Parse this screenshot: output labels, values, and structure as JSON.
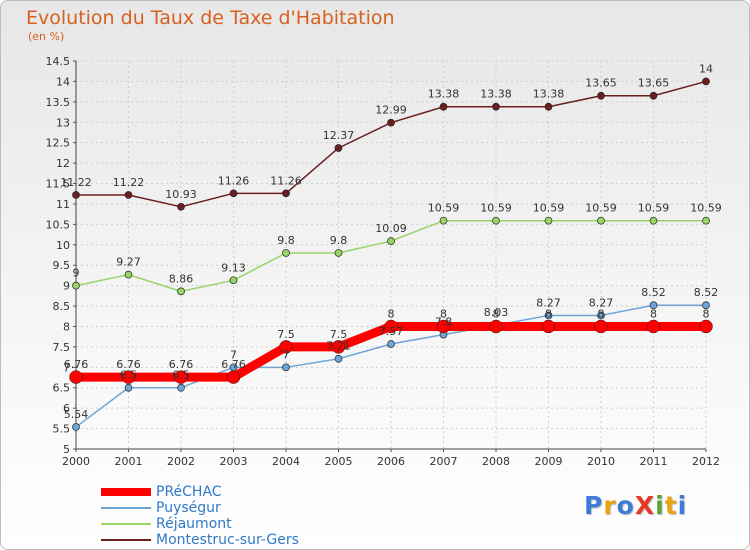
{
  "header": {
    "title": "Evolution du Taux de Taxe d'Habitation",
    "unit": "(en %)"
  },
  "logo": {
    "text": "ProXiti",
    "colors": [
      "#3c7bd6",
      "#e8a417",
      "#3c7bd6",
      "#e23b2a",
      "#5aa436",
      "#e8a417",
      "#3c7bd6"
    ]
  },
  "chart_data": {
    "type": "line",
    "title": "Evolution du Taux de Taxe d'Habitation",
    "ylabel": "(en %)",
    "xlabel": "",
    "x": [
      "2000",
      "2001",
      "2002",
      "2003",
      "2004",
      "2005",
      "2006",
      "2007",
      "2008",
      "2009",
      "2010",
      "2011",
      "2012"
    ],
    "ylim": [
      5,
      14.5
    ],
    "yticks": [
      "5",
      "5.5",
      "6",
      "6.5",
      "7",
      "7.5",
      "8",
      "8.5",
      "9",
      "9.5",
      "10",
      "10.5",
      "11",
      "11.5",
      "12",
      "12.5",
      "13",
      "13.5",
      "14",
      "14.5"
    ],
    "grid": true,
    "legend_position": "bottom",
    "series": [
      {
        "name": "Montestruc-sur-Gers",
        "color": "#6b1f1f",
        "width": 1.5,
        "marker": 3.5,
        "values": [
          11.22,
          11.22,
          10.93,
          11.26,
          11.26,
          12.37,
          12.99,
          13.38,
          13.38,
          13.38,
          13.65,
          13.65,
          14
        ],
        "labels": [
          "11.22",
          "11.22",
          "10.93",
          "11.26",
          "11.26",
          "12.37",
          "12.99",
          "13.38",
          "13.38",
          "13.38",
          "13.65",
          "13.65",
          "14"
        ]
      },
      {
        "name": "Réjaumont",
        "color": "#9ad466",
        "width": 1.5,
        "marker": 3.5,
        "values": [
          9,
          9.27,
          8.86,
          9.13,
          9.8,
          9.8,
          10.09,
          10.59,
          10.59,
          10.59,
          10.59,
          10.59,
          10.59
        ],
        "labels": [
          "9",
          "9.27",
          "8.86",
          "9.13",
          "9.8",
          "9.8",
          "10.09",
          "10.59",
          "10.59",
          "10.59",
          "10.59",
          "10.59",
          "10.59"
        ]
      },
      {
        "name": "Puységur",
        "color": "#6fa4d6",
        "width": 1.5,
        "marker": 3.5,
        "values": [
          5.54,
          6.5,
          6.5,
          7,
          7,
          7.21,
          7.57,
          7.8,
          8.03,
          8.27,
          8.27,
          8.52,
          8.52
        ],
        "labels": [
          "5.54",
          "6.5",
          "6.5",
          "7",
          "7",
          "7.21",
          "7.57",
          "7.8",
          "8.03",
          "8.27",
          "8.27",
          "8.52",
          "8.52"
        ]
      },
      {
        "name": "PRéCHAC",
        "color": "#ff0000",
        "width": 9,
        "marker": 6.5,
        "values": [
          6.76,
          6.76,
          6.76,
          6.76,
          7.5,
          7.5,
          8,
          8,
          8,
          8,
          8,
          8,
          8
        ],
        "labels": [
          "6.76",
          "6.76",
          "6.76",
          "6.76",
          "7.5",
          "7.5",
          "8",
          "8",
          "8",
          "8",
          "8",
          "8",
          "8"
        ]
      }
    ],
    "legend": [
      {
        "name": "PRéCHAC",
        "color": "#ff0000"
      },
      {
        "name": "Puységur",
        "color": "#6fa4d6"
      },
      {
        "name": "Réjaumont",
        "color": "#9ad466"
      },
      {
        "name": "Montestruc-sur-Gers",
        "color": "#6b1f1f"
      }
    ]
  }
}
